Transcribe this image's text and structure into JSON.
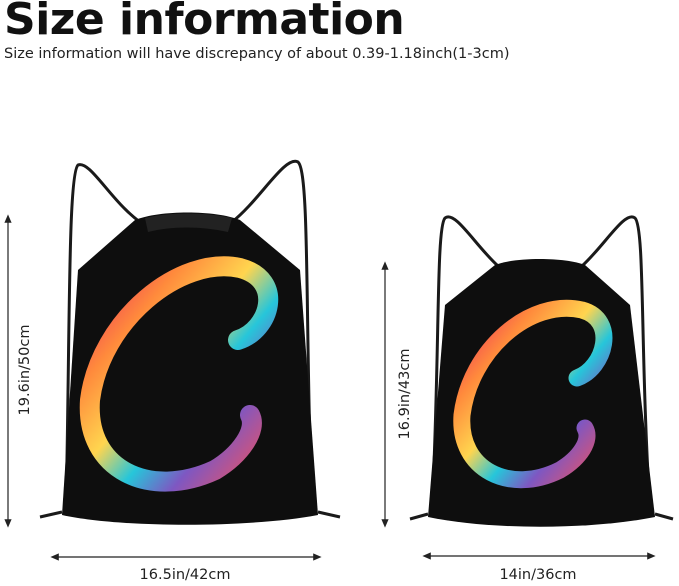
{
  "header": {
    "title": "Size information",
    "subtitle": "Size information will have discrepancy of about 0.39-1.18inch(1-3cm)"
  },
  "products": [
    {
      "name": "large-bag",
      "height_label": "19.6in/50cm",
      "width_label": "16.5in/42cm"
    },
    {
      "name": "small-bag",
      "height_label": "16.9in/43cm",
      "width_label": "14in/36cm"
    }
  ],
  "colors": {
    "bag": "#0e0e0e",
    "cord": "#1a1a1a",
    "gradient": [
      "#c2185b",
      "#ff6f3c",
      "#ffd54f",
      "#26c6da",
      "#7e57c2",
      "#e91e63"
    ]
  }
}
